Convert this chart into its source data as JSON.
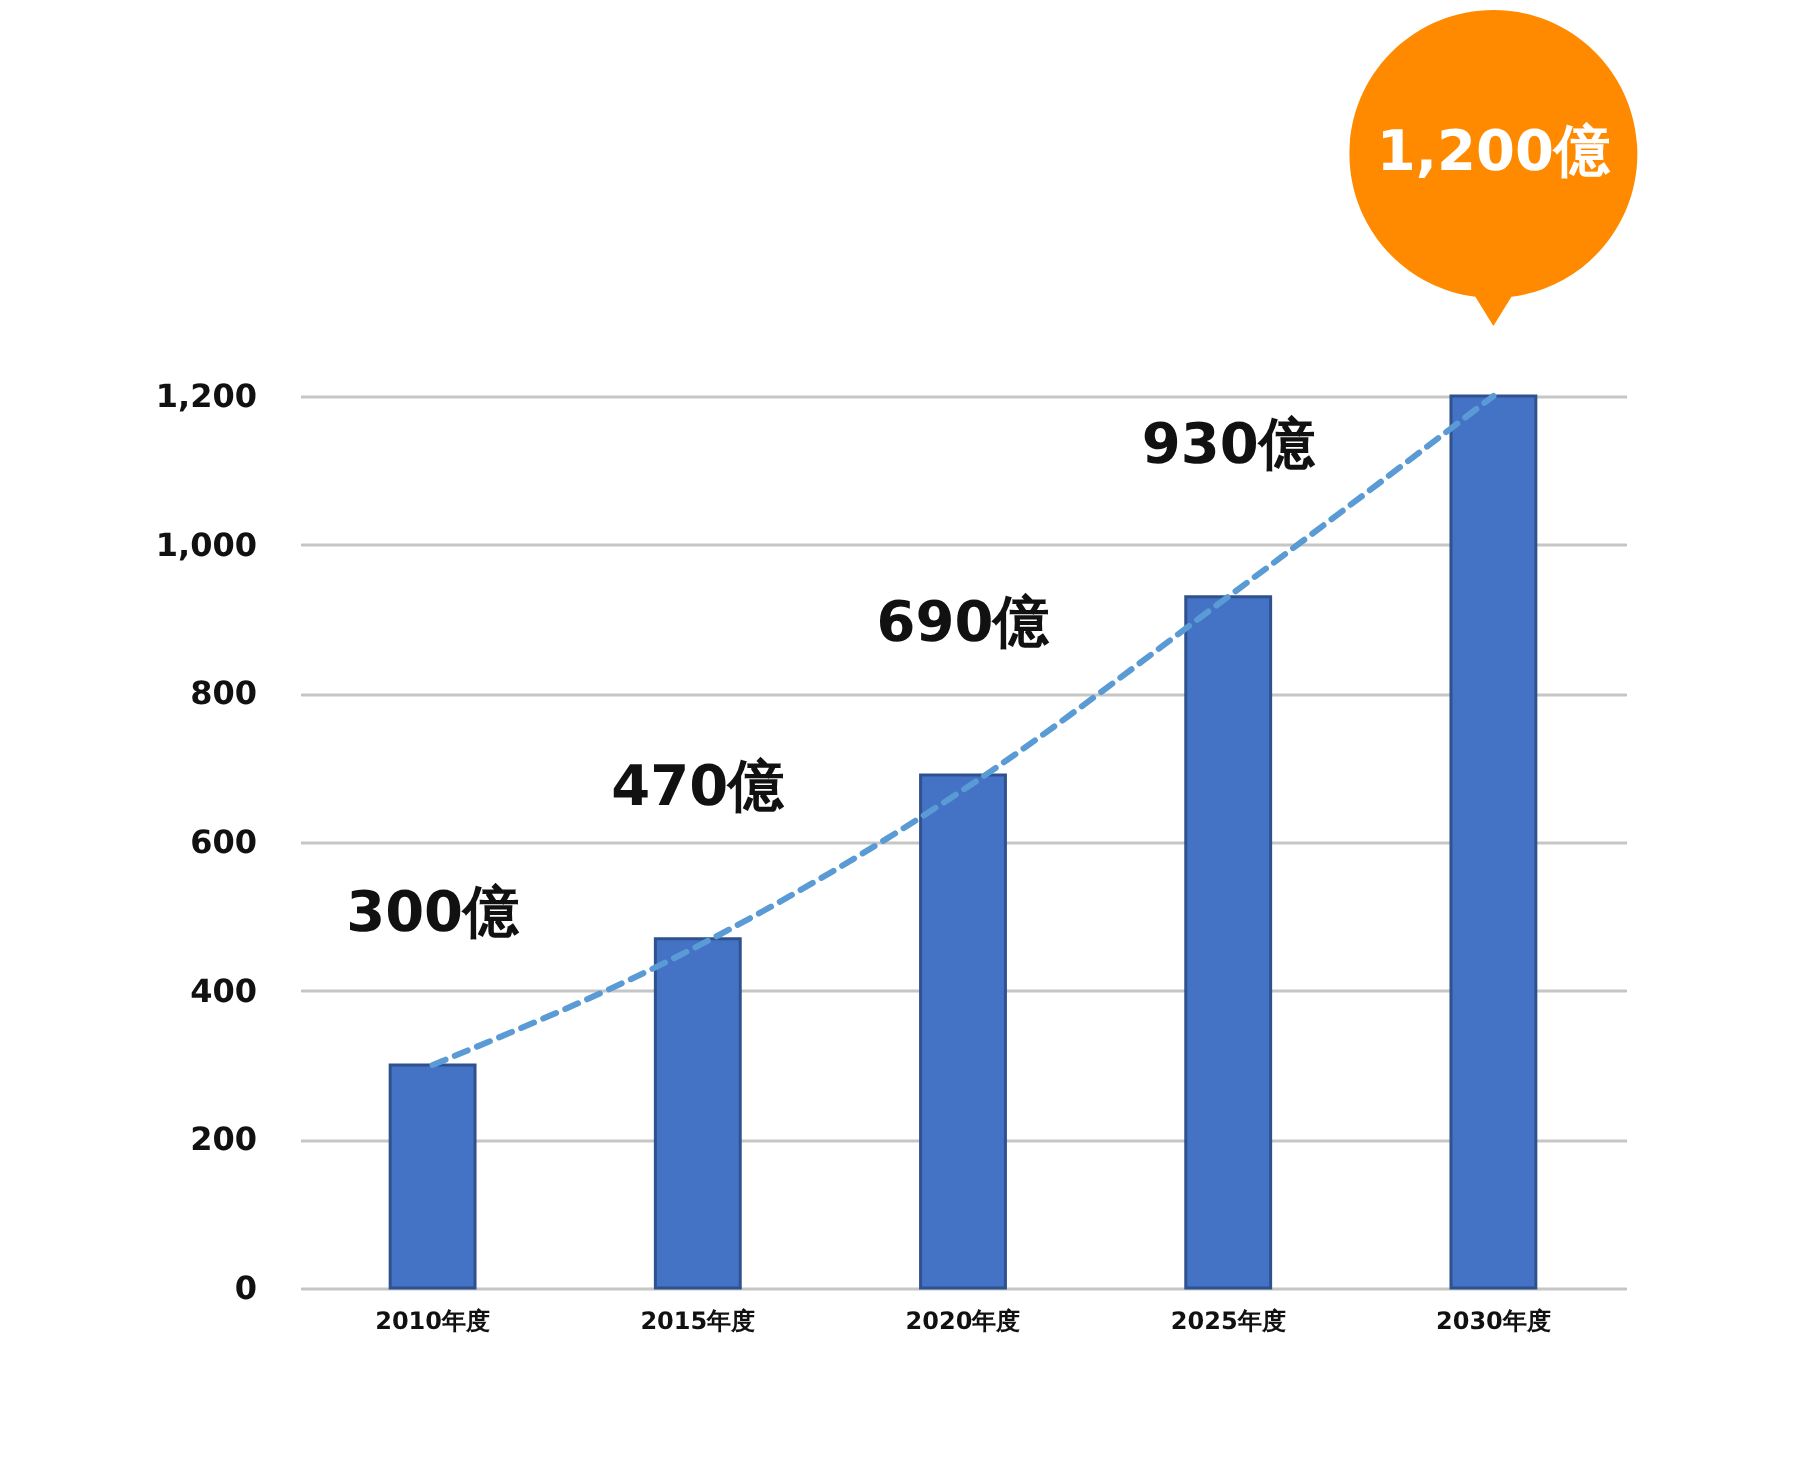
{
  "chart_data": {
    "type": "bar",
    "categories": [
      "2010年度",
      "2015年度",
      "2020年度",
      "2025年度",
      "2030年度"
    ],
    "series": [
      {
        "color": "#4472c4",
        "values": [
          300,
          470,
          690,
          930,
          1200
        ],
        "value_labels": [
          "300億",
          "470億",
          "690億",
          "930億",
          null
        ]
      },
      {
        "type": "line",
        "color": "#5b9bd5",
        "values": [
          300,
          460,
          670,
          930,
          1200
        ]
      }
    ],
    "annotations": [
      "1,200億"
    ],
    "ylim": [
      0,
      1200
    ],
    "yticks": [
      0,
      200,
      400,
      600,
      800,
      {
        "value": 1000,
        "label": "1,000"
      },
      {
        "value": 1200,
        "label": "1,200"
      }
    ],
    "grid": "y",
    "line_style": "dashed"
  }
}
